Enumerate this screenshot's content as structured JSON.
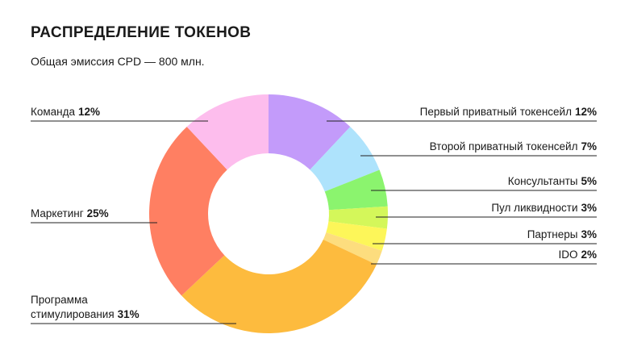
{
  "chart_data": {
    "type": "donut",
    "title": "РАСПРЕДЕЛЕНИЕ ТОКЕНОВ",
    "subtitle": "Общая эмиссия CPD — 800 млн.",
    "categories": [
      "Первый приватный токенсейл",
      "Второй приватный токенсейл",
      "Консультанты",
      "Пул ликвидности",
      "Партнеры",
      "IDO",
      "Программа стимулирования",
      "Маркетинг",
      "Команда"
    ],
    "values": [
      12,
      7,
      5,
      3,
      3,
      2,
      31,
      25,
      12
    ],
    "value_labels": [
      "12%",
      "7%",
      "5%",
      "3%",
      "3%",
      "2%",
      "31%",
      "25%",
      "12%"
    ],
    "colors": [
      "#c39bfa",
      "#aee3fc",
      "#8bf46e",
      "#d4f75a",
      "#fdf659",
      "#fddd7e",
      "#fdbb3e",
      "#ff7f62",
      "#fdbded"
    ]
  }
}
